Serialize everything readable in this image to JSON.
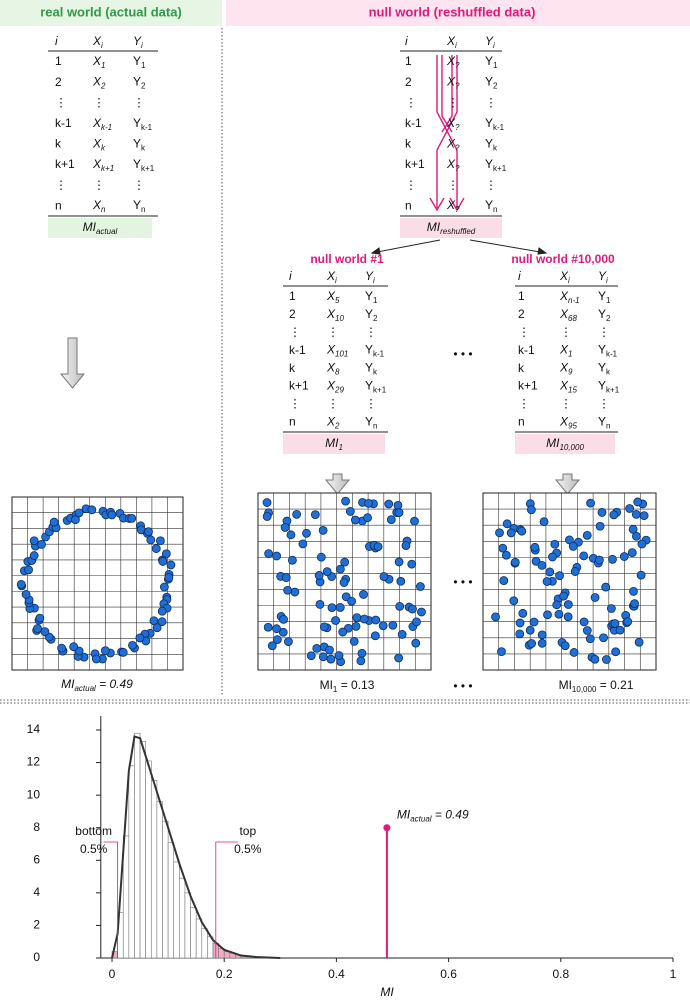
{
  "real_world": {
    "header": "real world (actual data)",
    "table": {
      "columns": [
        "i",
        [
          "X",
          "i"
        ],
        [
          "Y",
          "i"
        ]
      ],
      "rows": [
        [
          "1",
          [
            "X",
            "1"
          ],
          [
            "Y",
            "1"
          ]
        ],
        [
          "2",
          [
            "X",
            "2"
          ],
          [
            "Y",
            "2"
          ]
        ],
        [
          "⋮",
          "⋮",
          "⋮"
        ],
        [
          "k-1",
          [
            "X",
            "k-1"
          ],
          [
            "Y",
            "k-1"
          ]
        ],
        [
          "k",
          [
            "X",
            "k"
          ],
          [
            "Y",
            "k"
          ]
        ],
        [
          "k+1",
          [
            "X",
            "k+1"
          ],
          [
            "Y",
            "k+1"
          ]
        ],
        [
          "⋮",
          "⋮",
          "⋮"
        ],
        [
          "n",
          [
            "X",
            "n"
          ],
          [
            "Y",
            "n"
          ]
        ]
      ]
    },
    "summary": [
      "MI",
      "actual"
    ],
    "caption": [
      "MI",
      "actual",
      " = 0.49"
    ]
  },
  "null_world": {
    "header": "null world (reshuffled data)",
    "table": {
      "columns": [
        "i",
        [
          "X",
          "i"
        ],
        [
          "Y",
          "i"
        ]
      ],
      "rows": [
        [
          "1",
          [
            "X",
            "?"
          ],
          [
            "Y",
            "1"
          ]
        ],
        [
          "2",
          [
            "X",
            "?"
          ],
          [
            "Y",
            "2"
          ]
        ],
        [
          "⋮",
          "⋮",
          "⋮"
        ],
        [
          "k-1",
          [
            "X",
            "?"
          ],
          [
            "Y",
            "k-1"
          ]
        ],
        [
          "k",
          [
            "X",
            "?"
          ],
          [
            "Y",
            "k"
          ]
        ],
        [
          "k+1",
          [
            "X",
            "?"
          ],
          [
            "Y",
            "k+1"
          ]
        ],
        [
          "⋮",
          "⋮",
          "⋮"
        ],
        [
          "n",
          [
            "X",
            "?"
          ],
          [
            "Y",
            "n"
          ]
        ]
      ]
    },
    "summary": [
      "MI",
      "reshuffled"
    ],
    "ellipsis": "• • •",
    "samples": [
      {
        "title": "null world #1",
        "table": {
          "columns": [
            "i",
            [
              "X",
              "i"
            ],
            [
              "Y",
              "i"
            ]
          ],
          "rows": [
            [
              "1",
              [
                "X",
                "5"
              ],
              [
                "Y",
                "1"
              ]
            ],
            [
              "2",
              [
                "X",
                "10"
              ],
              [
                "Y",
                "2"
              ]
            ],
            [
              "⋮",
              "⋮",
              "⋮"
            ],
            [
              "k-1",
              [
                "X",
                "101"
              ],
              [
                "Y",
                "k-1"
              ]
            ],
            [
              "k",
              [
                "X",
                "8"
              ],
              [
                "Y",
                "k"
              ]
            ],
            [
              "k+1",
              [
                "X",
                "29"
              ],
              [
                "Y",
                "k+1"
              ]
            ],
            [
              "⋮",
              "⋮",
              "⋮"
            ],
            [
              "n",
              [
                "X",
                "2"
              ],
              [
                "Y",
                "n"
              ]
            ]
          ]
        },
        "summary": [
          "MI",
          "1"
        ],
        "caption": [
          "MI",
          "1",
          " = 0.13"
        ]
      },
      {
        "title": "null world #10,000",
        "table": {
          "columns": [
            "i",
            [
              "X",
              "i"
            ],
            [
              "Y",
              "i"
            ]
          ],
          "rows": [
            [
              "1",
              [
                "X",
                "n-1"
              ],
              [
                "Y",
                "1"
              ]
            ],
            [
              "2",
              [
                "X",
                "68"
              ],
              [
                "Y",
                "2"
              ]
            ],
            [
              "⋮",
              "⋮",
              "⋮"
            ],
            [
              "k-1",
              [
                "X",
                "1"
              ],
              [
                "Y",
                "k-1"
              ]
            ],
            [
              "k",
              [
                "X",
                "9"
              ],
              [
                "Y",
                "k"
              ]
            ],
            [
              "k+1",
              [
                "X",
                "15"
              ],
              [
                "Y",
                "k+1"
              ]
            ],
            [
              "⋮",
              "⋮",
              "⋮"
            ],
            [
              "n",
              [
                "X",
                "95"
              ],
              [
                "Y",
                "n"
              ]
            ]
          ]
        },
        "summary": [
          "MI",
          "10,000"
        ],
        "caption": [
          "MI",
          "10,000",
          " = 0.21"
        ]
      }
    ]
  },
  "chart_data": {
    "type": "histogram",
    "xlabel": "MI",
    "bins": [
      0,
      0.01,
      0.02,
      0.03,
      0.04,
      0.05,
      0.06,
      0.07,
      0.08,
      0.09,
      0.1,
      0.11,
      0.12,
      0.13,
      0.14,
      0.15,
      0.16,
      0.17,
      0.18,
      0.19,
      0.2,
      0.21,
      0.22,
      0.23,
      0.24,
      0.25,
      0.26,
      0.27,
      0.28,
      0.29,
      0.3
    ],
    "counts": [
      0.4,
      2.8,
      7.5,
      11.8,
      13.8,
      13.3,
      12.1,
      10.9,
      9.6,
      8.4,
      7.1,
      5.9,
      4.9,
      4.0,
      3.1,
      2.4,
      1.8,
      1.3,
      0.9,
      0.6,
      0.4,
      0.3,
      0.2,
      0.15,
      0.1,
      0.08,
      0.05,
      0.04,
      0.03,
      0.02
    ],
    "color": "#ffffff",
    "curve": {
      "x": [
        0,
        0.01,
        0.02,
        0.03,
        0.04,
        0.05,
        0.06,
        0.08,
        0.1,
        0.12,
        0.14,
        0.16,
        0.18,
        0.2,
        0.23,
        0.26,
        0.3
      ],
      "values": [
        0,
        1.5,
        6.5,
        11.5,
        13.6,
        13.5,
        12.4,
        10.2,
        8.0,
        5.8,
        3.8,
        2.2,
        1.1,
        0.5,
        0.15,
        0.05,
        0
      ],
      "color": "#333333"
    },
    "percentiles": [
      {
        "lines": [
          "bottom",
          "0.5%"
        ],
        "x": 0.01
      },
      {
        "lines": [
          "top",
          "0.5%"
        ],
        "x": 0.185
      }
    ],
    "actual": {
      "label": [
        "MI",
        "actual",
        " = 0.49"
      ],
      "x": 0.49,
      "y": 8,
      "color": "#e0197d"
    },
    "xlim": [
      -0.02,
      1
    ],
    "ylim": [
      0,
      14
    ],
    "xticks": [
      0,
      0.2,
      0.4,
      0.6,
      0.8,
      1
    ],
    "yticks": [
      0,
      2,
      4,
      6,
      8,
      10,
      12,
      14
    ]
  }
}
